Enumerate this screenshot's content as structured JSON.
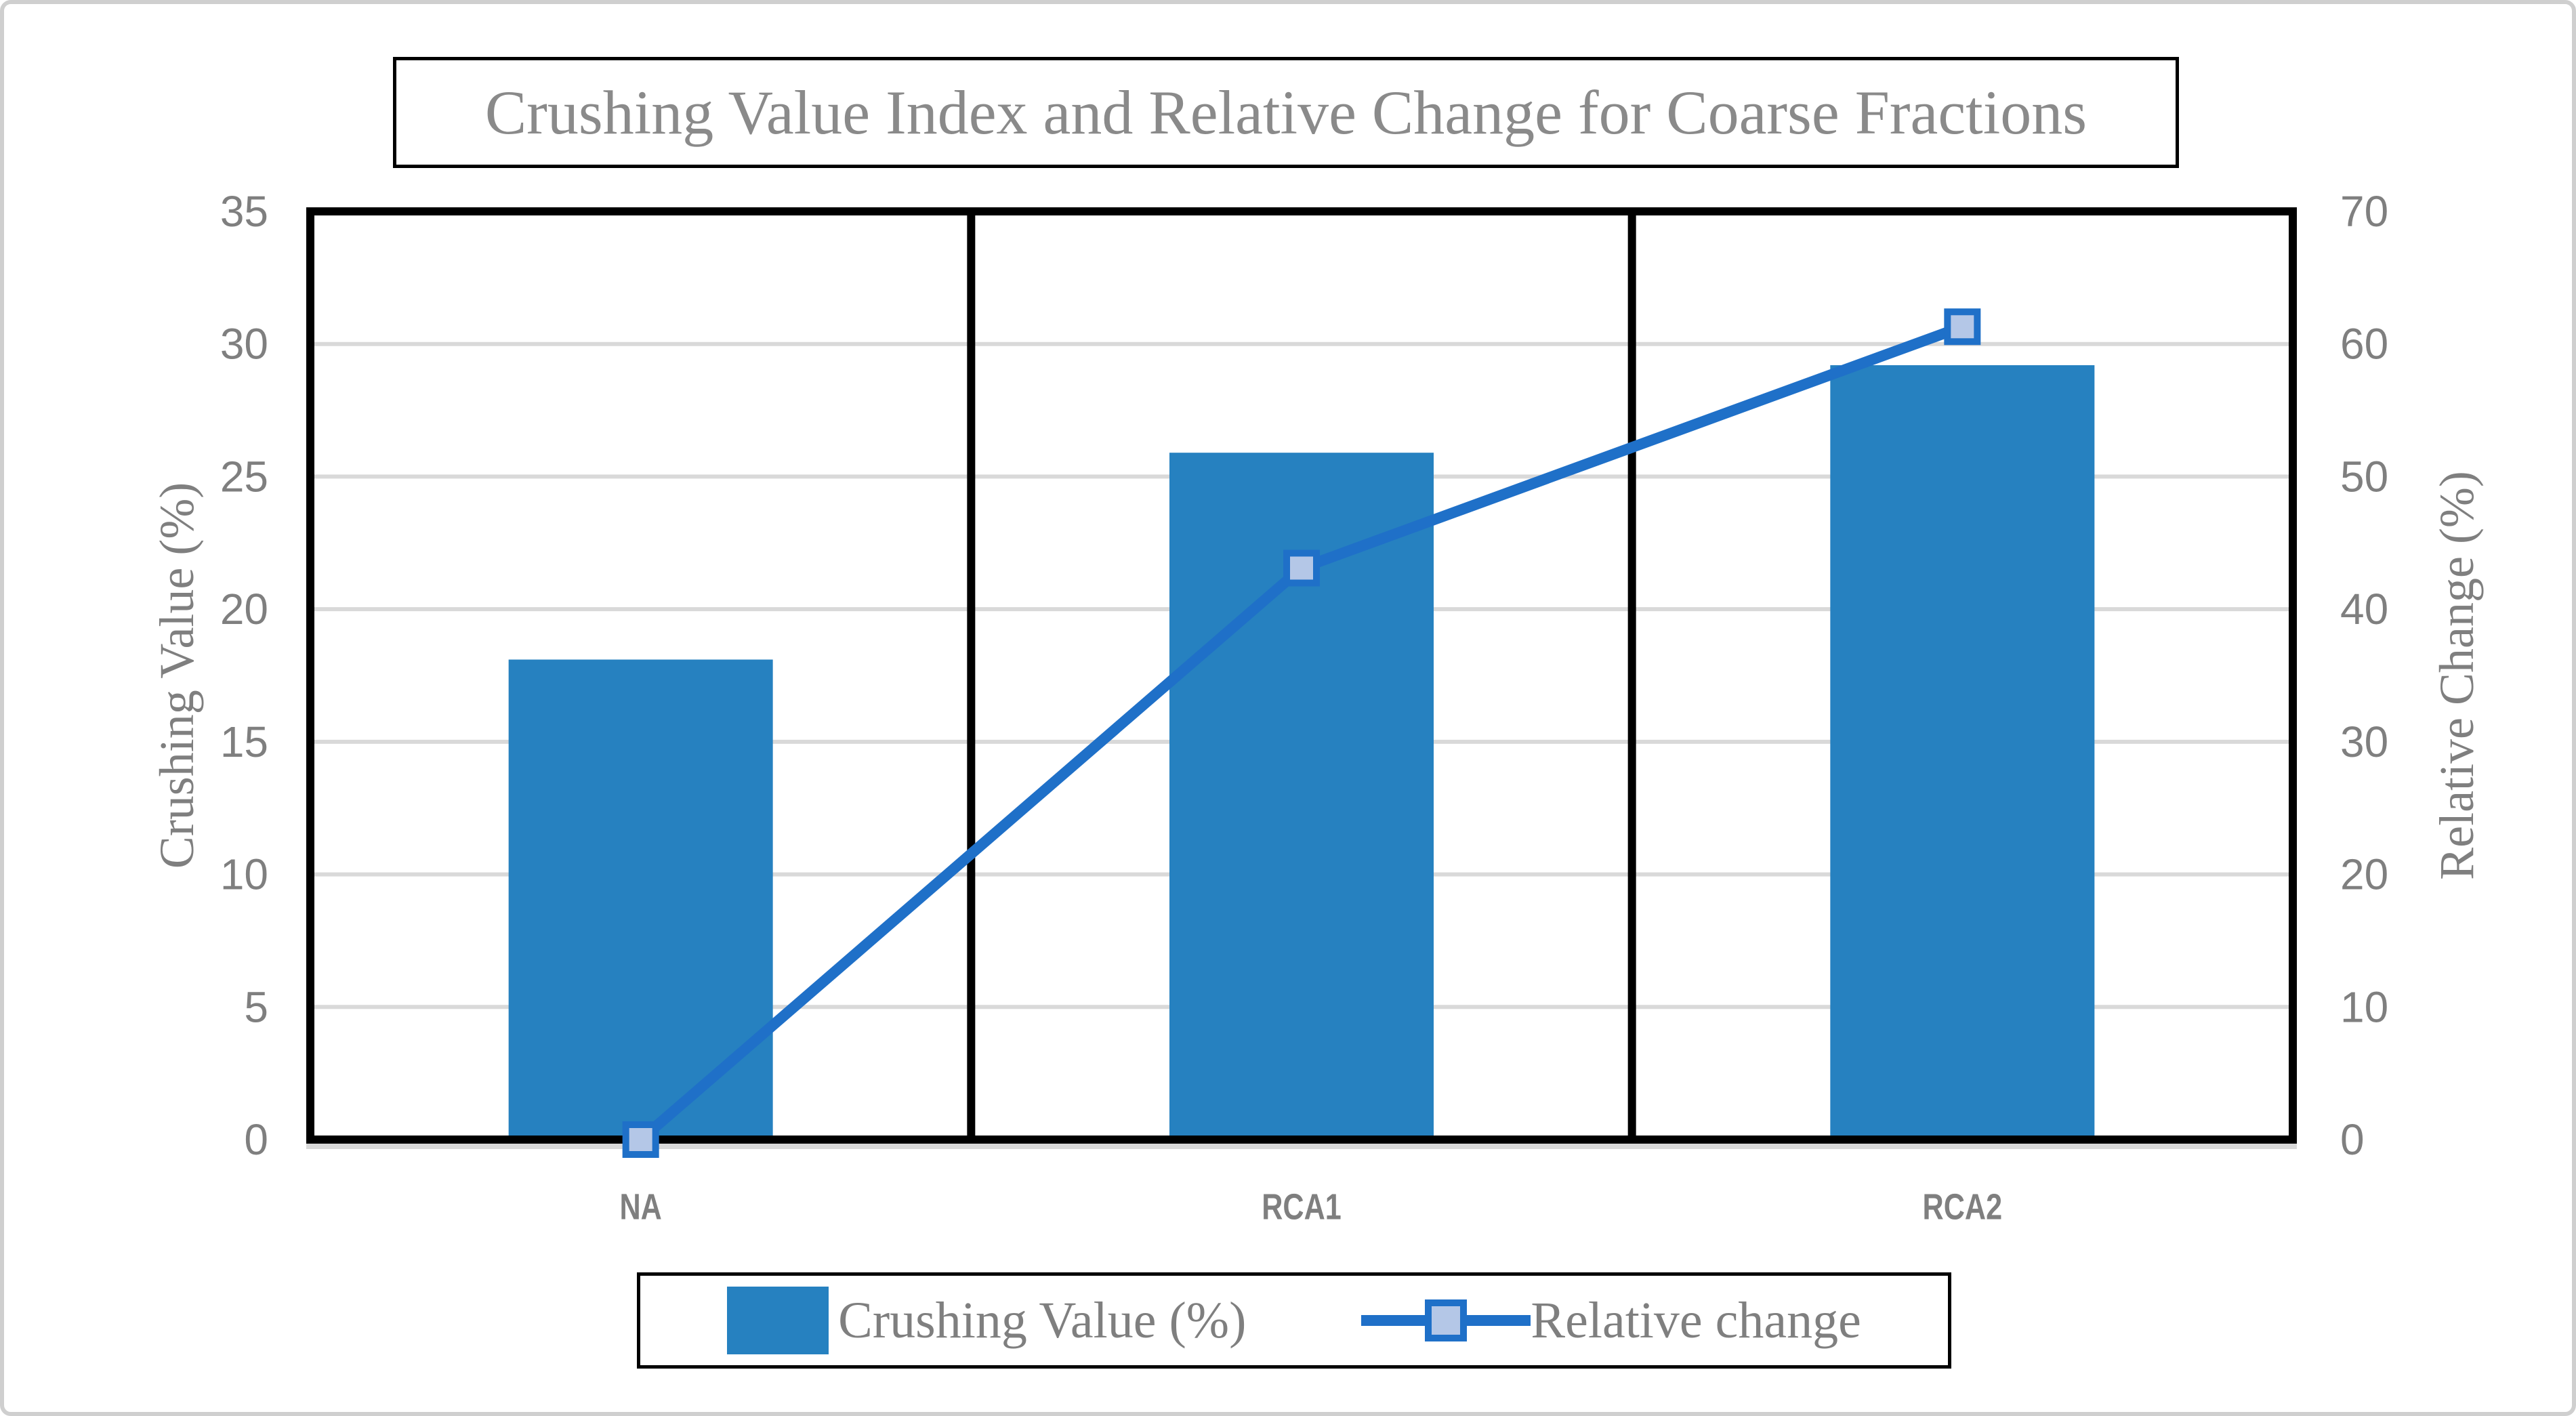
{
  "chart_data": {
    "type": "bar",
    "subtype": "combo-bar-line-dual-axis",
    "title": "Crushing Value Index and Relative Change for Coarse Fractions",
    "categories": [
      "NA",
      "RCA1",
      "RCA2"
    ],
    "series": [
      {
        "name": "Crushing Value (%)",
        "type": "bar",
        "axis": "left",
        "values": [
          18.1,
          25.9,
          29.2
        ]
      },
      {
        "name": "Relative change",
        "type": "line",
        "axis": "right",
        "values": [
          0,
          43.1,
          61.3
        ]
      }
    ],
    "left_axis": {
      "label": "Crushing Value (%)",
      "min": 0,
      "max": 35,
      "step": 5
    },
    "right_axis": {
      "label": "Relative Change (%)",
      "min": 0,
      "max": 70,
      "step": 10
    },
    "grid": true,
    "panel_dividers": true,
    "legend_position": "bottom",
    "colors": {
      "bar": "#2681C0",
      "line": "#1F70C8",
      "marker_fill": "#B4C7E7",
      "gridline": "#D9D9D9",
      "axis_shadow": "#D9D9D9",
      "axis_text": "#7F7F7F",
      "title_text": "#8A8A8A",
      "divider": "#000000",
      "plot_border": "#000000",
      "canvas_border": "#CFCFCF"
    }
  }
}
